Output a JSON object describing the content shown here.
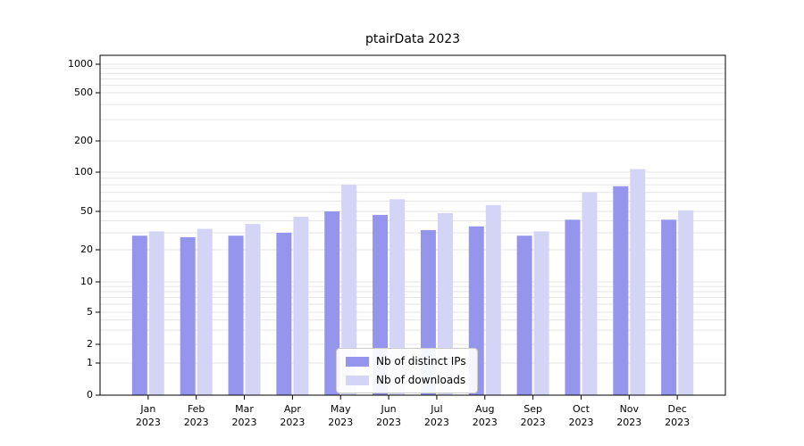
{
  "chart": {
    "title": "ptairData 2023"
  },
  "chart_data": {
    "type": "bar",
    "title": "ptairData 2023",
    "categories": [
      "Jan 2023",
      "Feb 2023",
      "Mar 2023",
      "Apr 2023",
      "May 2023",
      "Jun 2023",
      "Jul 2023",
      "Aug 2023",
      "Sep 2023",
      "Oct 2023",
      "Nov 2023",
      "Dec 2023"
    ],
    "series": [
      {
        "name": "Nb of distinct IPs",
        "color": "#9595ee",
        "values": [
          28,
          27,
          28,
          30,
          50,
          46,
          32,
          35,
          28,
          41,
          78,
          41
        ]
      },
      {
        "name": "Nb of downloads",
        "color": "#d4d4f6",
        "values": [
          31,
          33,
          37,
          44,
          80,
          62,
          48,
          56,
          31,
          70,
          107,
          51
        ]
      }
    ],
    "xlabel": "",
    "ylabel": "",
    "yscale": "symlog",
    "y_ticks": [
      0,
      1,
      2,
      5,
      10,
      20,
      50,
      100,
      200,
      500,
      1000
    ],
    "ylim": [
      0,
      1000
    ],
    "grid": "horizontal-log-minor",
    "grid_color": "#e6e6e6",
    "legend_position": "lower-center"
  }
}
